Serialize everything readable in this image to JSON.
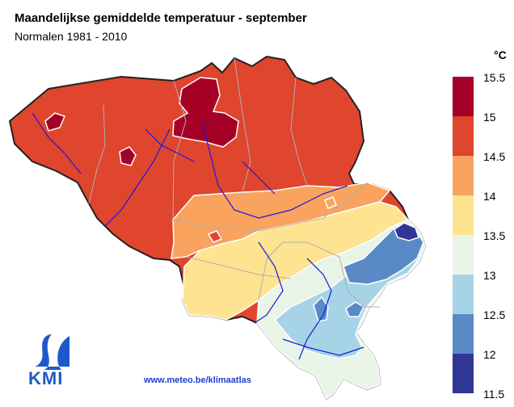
{
  "title": "Maandelijkse gemiddelde temperatuur - september",
  "subtitle": "Normalen 1981 - 2010",
  "legend": {
    "unit": "°C",
    "labels": [
      "15.5",
      "15",
      "14.5",
      "14",
      "13.5",
      "13",
      "12.5",
      "12",
      "11.5"
    ],
    "colors": [
      "#a50026",
      "#e0452e",
      "#f9a35e",
      "#fee391",
      "#e8f4e6",
      "#a6d4e6",
      "#5a8ac6",
      "#313695"
    ]
  },
  "footer": {
    "url": "www.meteo.be/klimaatlas"
  },
  "logo": {
    "text": "KMI"
  }
}
